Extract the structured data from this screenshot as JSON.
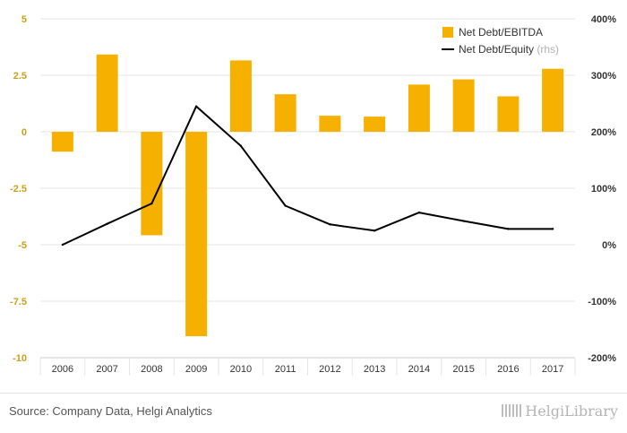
{
  "chart_data": {
    "type": "bar+line",
    "categories": [
      "2006",
      "2007",
      "2008",
      "2009",
      "2010",
      "2011",
      "2012",
      "2013",
      "2014",
      "2015",
      "2016",
      "2017"
    ],
    "series": [
      {
        "name": "Net Debt/EBITDA",
        "type": "bar",
        "axis": "left",
        "color": "#f5b000",
        "values": [
          -0.88,
          3.42,
          -4.58,
          -9.05,
          3.16,
          1.66,
          0.71,
          0.67,
          2.09,
          2.32,
          1.57,
          2.79
        ]
      },
      {
        "name": "Net Debt/Equity",
        "name_suffix": "(rhs)",
        "type": "line",
        "axis": "right",
        "color": "#000000",
        "values": [
          0.0,
          0.37,
          0.73,
          2.45,
          1.75,
          0.69,
          0.36,
          0.25,
          0.57,
          0.42,
          0.28,
          0.28
        ]
      }
    ],
    "y_left": {
      "min": -10,
      "max": 5,
      "ticks": [
        5,
        2.5,
        0,
        -2.5,
        -5,
        -7.5,
        -10
      ],
      "tick_labels": [
        "5",
        "2.5",
        "0",
        "-2.5",
        "-5",
        "-7.5",
        "-10"
      ]
    },
    "y_right": {
      "min": -2,
      "max": 4,
      "ticks": [
        4,
        3,
        2,
        1,
        0,
        -1,
        -2
      ],
      "tick_labels": [
        "400%",
        "300%",
        "200%",
        "100%",
        "0%",
        "-100%",
        "-200%"
      ]
    },
    "legend_position": "top-right",
    "grid": "horizontal"
  },
  "footer": {
    "source": "Source: Company Data, Helgi Analytics",
    "brand": "HelgiLibrary"
  }
}
